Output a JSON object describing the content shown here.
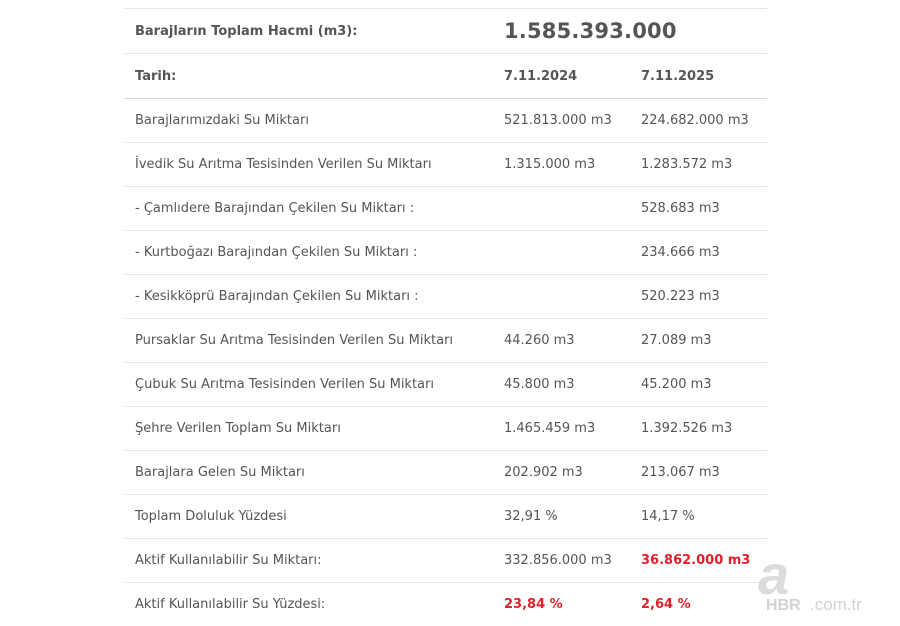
{
  "summary": {
    "label": "Barajların Toplam Hacmi (m3):",
    "value": "1.585.393.000"
  },
  "header": {
    "label": "Tarih:",
    "col_a": "7.11.2024",
    "col_b": "7.11.2025"
  },
  "rows": [
    {
      "label": "Barajlarımızdaki Su Miktarı",
      "a": "521.813.000 m3",
      "b": "224.682.000 m3"
    },
    {
      "label": "İvedik Su Arıtma Tesisinden Verilen Su Miktarı",
      "a": "1.315.000 m3",
      "b": "1.283.572 m3"
    },
    {
      "label": "- Çamlıdere Barajından Çekilen Su Miktarı :",
      "a": "",
      "b": "528.683 m3"
    },
    {
      "label": "- Kurtboğazı Barajından Çekilen Su Miktarı :",
      "a": "",
      "b": "234.666 m3"
    },
    {
      "label": "- Kesikköprü Barajından Çekilen Su Miktarı :",
      "a": "",
      "b": "520.223 m3"
    },
    {
      "label": "Pursaklar Su Arıtma Tesisinden Verilen Su Miktarı",
      "a": "44.260 m3",
      "b": "27.089 m3"
    },
    {
      "label": "Çubuk Su Arıtma Tesisinden Verilen Su Miktarı",
      "a": "45.800 m3",
      "b": "45.200 m3"
    },
    {
      "label": "Şehre Verilen Toplam Su Miktarı",
      "a": "1.465.459 m3",
      "b": "1.392.526 m3"
    },
    {
      "label": "Barajlara Gelen Su Miktarı",
      "a": "202.902 m3",
      "b": "213.067 m3"
    },
    {
      "label": "Toplam Doluluk Yüzdesi",
      "a": "32,91 %",
      "b": "14,17 %"
    },
    {
      "label": "Aktif Kullanılabilir Su Miktarı:",
      "a": "332.856.000 m3",
      "b": "36.862.000 m3"
    },
    {
      "label": "Aktif Kullanılabilir Su Yüzdesi:",
      "a": "23,84 %",
      "b": "2,64 %"
    }
  ],
  "watermark": {
    "letter": "a",
    "brand": "HBR",
    "domain": ".com.tr"
  },
  "colors": {
    "text": "#555555",
    "highlight": "#e0212b",
    "divider": "#e6e6e6",
    "watermark": "#d9d9d9"
  }
}
